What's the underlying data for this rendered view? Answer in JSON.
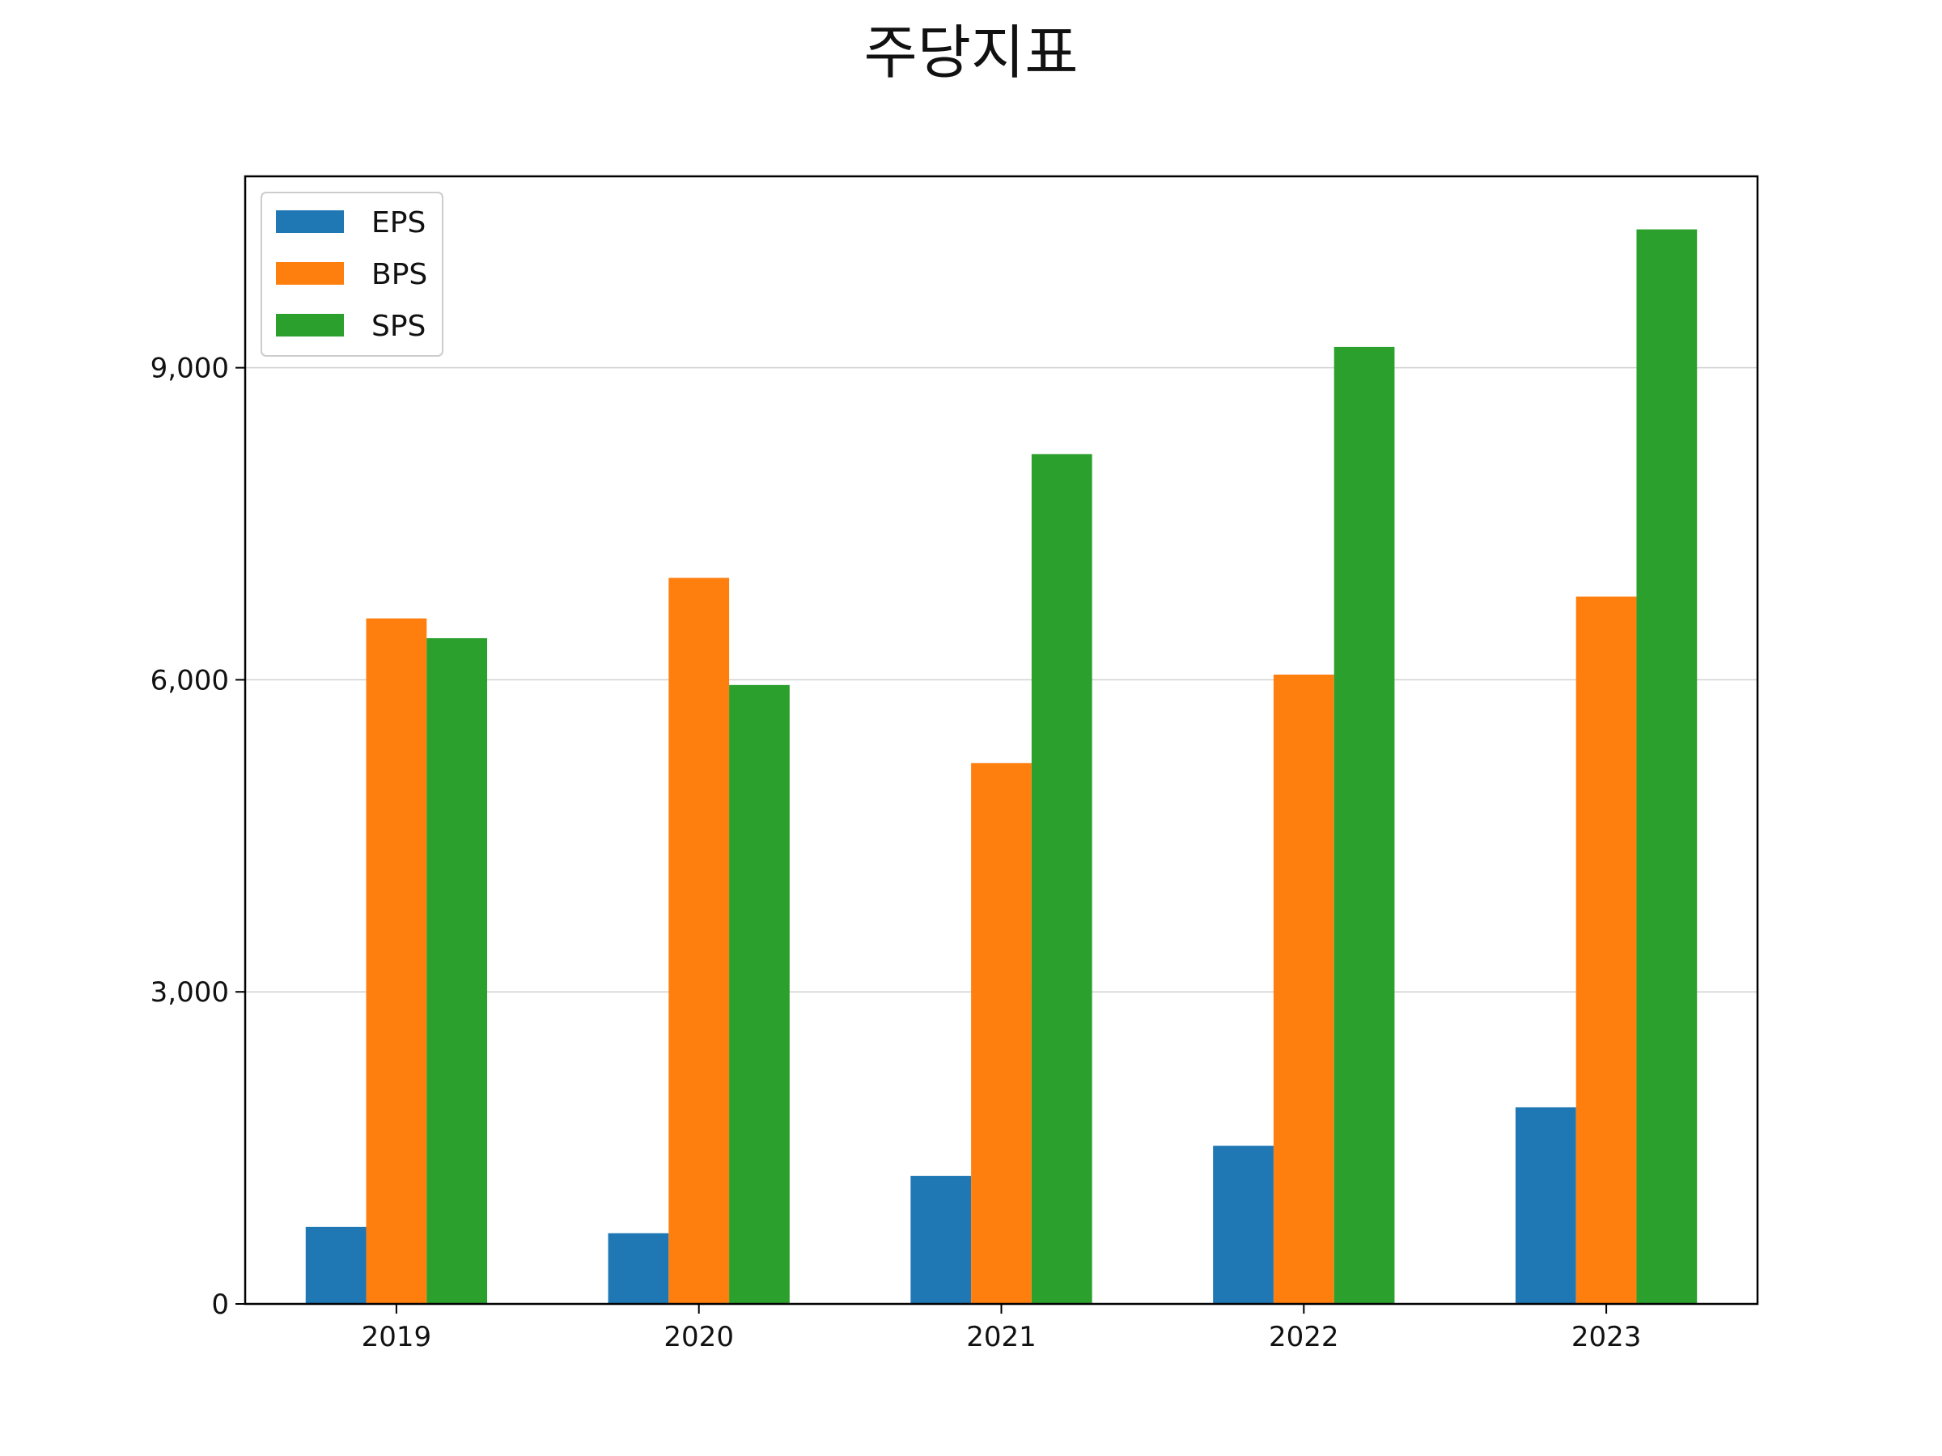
{
  "chart_data": {
    "type": "bar",
    "title": "주당지표",
    "xlabel": "",
    "ylabel": "",
    "categories": [
      "2019",
      "2020",
      "2021",
      "2022",
      "2023"
    ],
    "series": [
      {
        "name": "EPS",
        "color": "#1f77b4",
        "values": [
          740,
          680,
          1230,
          1520,
          1890
        ]
      },
      {
        "name": "BPS",
        "color": "#ff7f0e",
        "values": [
          6590,
          6980,
          5200,
          6050,
          6800
        ]
      },
      {
        "name": "SPS",
        "color": "#2ca02c",
        "values": [
          6400,
          5950,
          8170,
          9200,
          10330
        ]
      }
    ],
    "ylim": [
      0,
      10840
    ],
    "yticks": [
      0,
      3000,
      6000,
      9000
    ],
    "ytick_labels": [
      "0",
      "3,000",
      "6,000",
      "9,000"
    ],
    "grid": "horizontal",
    "legend_position": "top-left"
  }
}
